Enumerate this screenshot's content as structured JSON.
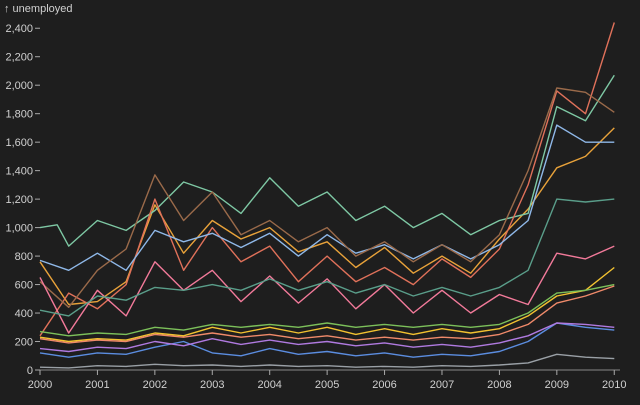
{
  "chart_data": {
    "type": "line",
    "title": "",
    "ylabel": "↑ unemployed",
    "xlabel": "",
    "x_range": [
      "2000-01",
      "2010-02"
    ],
    "ylim": [
      0,
      2500
    ],
    "x_ticks": [
      "2000",
      "2001",
      "2002",
      "2003",
      "2004",
      "2005",
      "2006",
      "2007",
      "2008",
      "2009",
      "2010"
    ],
    "y_ticks": [
      "0",
      "200",
      "400",
      "600",
      "800",
      "1,000",
      "1,200",
      "1,400",
      "1,600",
      "1,800",
      "2,000",
      "2,200",
      "2,400"
    ],
    "grid": false,
    "legend": "none",
    "series": [
      {
        "color": "#e8a23a",
        "values": [
          [
            2000.0,
            760
          ],
          [
            2000.5,
            460
          ],
          [
            2001.0,
            480
          ],
          [
            2001.5,
            620
          ],
          [
            2002.0,
            1160
          ],
          [
            2002.5,
            820
          ],
          [
            2003.0,
            1050
          ],
          [
            2003.5,
            920
          ],
          [
            2004.0,
            1000
          ],
          [
            2004.5,
            830
          ],
          [
            2005.0,
            900
          ],
          [
            2005.5,
            720
          ],
          [
            2006.0,
            860
          ],
          [
            2006.5,
            680
          ],
          [
            2007.0,
            800
          ],
          [
            2007.5,
            680
          ],
          [
            2008.0,
            920
          ],
          [
            2008.5,
            1130
          ],
          [
            2009.0,
            1420
          ],
          [
            2009.5,
            1500
          ],
          [
            2010.0,
            1700
          ]
        ]
      },
      {
        "color": "#7ec8a4",
        "values": [
          [
            2000.0,
            1000
          ],
          [
            2000.3,
            1020
          ],
          [
            2000.5,
            870
          ],
          [
            2001.0,
            1050
          ],
          [
            2001.5,
            980
          ],
          [
            2002.0,
            1120
          ],
          [
            2002.5,
            1320
          ],
          [
            2003.0,
            1250
          ],
          [
            2003.5,
            1100
          ],
          [
            2004.0,
            1350
          ],
          [
            2004.5,
            1150
          ],
          [
            2005.0,
            1250
          ],
          [
            2005.5,
            1050
          ],
          [
            2006.0,
            1150
          ],
          [
            2006.5,
            1000
          ],
          [
            2007.0,
            1100
          ],
          [
            2007.5,
            950
          ],
          [
            2008.0,
            1050
          ],
          [
            2008.5,
            1100
          ],
          [
            2009.0,
            1850
          ],
          [
            2009.5,
            1750
          ],
          [
            2010.0,
            2070
          ]
        ]
      },
      {
        "color": "#e0715a",
        "values": [
          [
            2000.0,
            240
          ],
          [
            2000.5,
            540
          ],
          [
            2001.0,
            430
          ],
          [
            2001.5,
            600
          ],
          [
            2002.0,
            1200
          ],
          [
            2002.5,
            700
          ],
          [
            2003.0,
            1000
          ],
          [
            2003.5,
            760
          ],
          [
            2004.0,
            870
          ],
          [
            2004.5,
            620
          ],
          [
            2005.0,
            800
          ],
          [
            2005.5,
            620
          ],
          [
            2006.0,
            720
          ],
          [
            2006.5,
            600
          ],
          [
            2007.0,
            780
          ],
          [
            2007.5,
            650
          ],
          [
            2008.0,
            850
          ],
          [
            2008.5,
            1300
          ],
          [
            2009.0,
            1960
          ],
          [
            2009.5,
            1800
          ],
          [
            2010.0,
            2440
          ]
        ]
      },
      {
        "color": "#8fb8e8",
        "values": [
          [
            2000.0,
            770
          ],
          [
            2000.5,
            700
          ],
          [
            2001.0,
            820
          ],
          [
            2001.5,
            700
          ],
          [
            2002.0,
            980
          ],
          [
            2002.5,
            900
          ],
          [
            2003.0,
            960
          ],
          [
            2003.5,
            860
          ],
          [
            2004.0,
            960
          ],
          [
            2004.5,
            800
          ],
          [
            2005.0,
            950
          ],
          [
            2005.5,
            820
          ],
          [
            2006.0,
            880
          ],
          [
            2006.5,
            780
          ],
          [
            2007.0,
            880
          ],
          [
            2007.5,
            780
          ],
          [
            2008.0,
            880
          ],
          [
            2008.5,
            1050
          ],
          [
            2009.0,
            1720
          ],
          [
            2009.5,
            1600
          ],
          [
            2010.0,
            1600
          ]
        ]
      },
      {
        "color": "#9a6a4a",
        "values": [
          [
            2000.0,
            620
          ],
          [
            2000.5,
            440
          ],
          [
            2001.0,
            700
          ],
          [
            2001.5,
            850
          ],
          [
            2002.0,
            1370
          ],
          [
            2002.5,
            1050
          ],
          [
            2003.0,
            1250
          ],
          [
            2003.5,
            950
          ],
          [
            2004.0,
            1050
          ],
          [
            2004.5,
            900
          ],
          [
            2005.0,
            1000
          ],
          [
            2005.5,
            800
          ],
          [
            2006.0,
            900
          ],
          [
            2006.5,
            760
          ],
          [
            2007.0,
            880
          ],
          [
            2007.5,
            760
          ],
          [
            2008.0,
            950
          ],
          [
            2008.5,
            1400
          ],
          [
            2009.0,
            1980
          ],
          [
            2009.5,
            1950
          ],
          [
            2010.0,
            1810
          ]
        ]
      },
      {
        "color": "#f27a9a",
        "values": [
          [
            2000.0,
            650
          ],
          [
            2000.5,
            260
          ],
          [
            2001.0,
            560
          ],
          [
            2001.5,
            380
          ],
          [
            2002.0,
            760
          ],
          [
            2002.5,
            560
          ],
          [
            2003.0,
            700
          ],
          [
            2003.5,
            480
          ],
          [
            2004.0,
            660
          ],
          [
            2004.5,
            470
          ],
          [
            2005.0,
            640
          ],
          [
            2005.5,
            430
          ],
          [
            2006.0,
            600
          ],
          [
            2006.5,
            400
          ],
          [
            2007.0,
            560
          ],
          [
            2007.5,
            400
          ],
          [
            2008.0,
            530
          ],
          [
            2008.5,
            460
          ],
          [
            2009.0,
            820
          ],
          [
            2009.5,
            780
          ],
          [
            2010.0,
            870
          ]
        ]
      },
      {
        "color": "#5a9e8a",
        "values": [
          [
            2000.0,
            420
          ],
          [
            2000.5,
            380
          ],
          [
            2001.0,
            520
          ],
          [
            2001.5,
            490
          ],
          [
            2002.0,
            580
          ],
          [
            2002.5,
            560
          ],
          [
            2003.0,
            600
          ],
          [
            2003.5,
            560
          ],
          [
            2004.0,
            640
          ],
          [
            2004.5,
            560
          ],
          [
            2005.0,
            620
          ],
          [
            2005.5,
            540
          ],
          [
            2006.0,
            600
          ],
          [
            2006.5,
            520
          ],
          [
            2007.0,
            580
          ],
          [
            2007.5,
            520
          ],
          [
            2008.0,
            580
          ],
          [
            2008.5,
            700
          ],
          [
            2009.0,
            1200
          ],
          [
            2009.5,
            1180
          ],
          [
            2010.0,
            1200
          ]
        ]
      },
      {
        "color": "#f2c230",
        "values": [
          [
            2000.0,
            230
          ],
          [
            2000.5,
            200
          ],
          [
            2001.0,
            220
          ],
          [
            2001.5,
            210
          ],
          [
            2002.0,
            260
          ],
          [
            2002.5,
            240
          ],
          [
            2003.0,
            300
          ],
          [
            2003.5,
            260
          ],
          [
            2004.0,
            300
          ],
          [
            2004.5,
            260
          ],
          [
            2005.0,
            300
          ],
          [
            2005.5,
            250
          ],
          [
            2006.0,
            290
          ],
          [
            2006.5,
            250
          ],
          [
            2007.0,
            290
          ],
          [
            2007.5,
            260
          ],
          [
            2008.0,
            290
          ],
          [
            2008.5,
            380
          ],
          [
            2009.0,
            520
          ],
          [
            2009.5,
            560
          ],
          [
            2010.0,
            720
          ]
        ]
      },
      {
        "color": "#7cc05a",
        "values": [
          [
            2000.0,
            270
          ],
          [
            2000.5,
            240
          ],
          [
            2001.0,
            260
          ],
          [
            2001.5,
            250
          ],
          [
            2002.0,
            300
          ],
          [
            2002.5,
            280
          ],
          [
            2003.0,
            320
          ],
          [
            2003.5,
            300
          ],
          [
            2004.0,
            320
          ],
          [
            2004.5,
            300
          ],
          [
            2005.0,
            330
          ],
          [
            2005.5,
            300
          ],
          [
            2006.0,
            320
          ],
          [
            2006.5,
            300
          ],
          [
            2007.0,
            320
          ],
          [
            2007.5,
            300
          ],
          [
            2008.0,
            320
          ],
          [
            2008.5,
            400
          ],
          [
            2009.0,
            540
          ],
          [
            2009.5,
            560
          ],
          [
            2010.0,
            600
          ]
        ]
      },
      {
        "color": "#f08a6a",
        "values": [
          [
            2000.0,
            220
          ],
          [
            2000.5,
            190
          ],
          [
            2001.0,
            210
          ],
          [
            2001.5,
            200
          ],
          [
            2002.0,
            250
          ],
          [
            2002.5,
            230
          ],
          [
            2003.0,
            260
          ],
          [
            2003.5,
            230
          ],
          [
            2004.0,
            250
          ],
          [
            2004.5,
            220
          ],
          [
            2005.0,
            240
          ],
          [
            2005.5,
            210
          ],
          [
            2006.0,
            230
          ],
          [
            2006.5,
            210
          ],
          [
            2007.0,
            230
          ],
          [
            2007.5,
            220
          ],
          [
            2008.0,
            250
          ],
          [
            2008.5,
            320
          ],
          [
            2009.0,
            470
          ],
          [
            2009.5,
            520
          ],
          [
            2010.0,
            590
          ]
        ]
      },
      {
        "color": "#5b8de0",
        "values": [
          [
            2000.0,
            120
          ],
          [
            2000.5,
            90
          ],
          [
            2001.0,
            120
          ],
          [
            2001.5,
            110
          ],
          [
            2002.0,
            160
          ],
          [
            2002.5,
            200
          ],
          [
            2003.0,
            120
          ],
          [
            2003.5,
            100
          ],
          [
            2004.0,
            150
          ],
          [
            2004.5,
            110
          ],
          [
            2005.0,
            130
          ],
          [
            2005.5,
            100
          ],
          [
            2006.0,
            120
          ],
          [
            2006.5,
            90
          ],
          [
            2007.0,
            110
          ],
          [
            2007.5,
            100
          ],
          [
            2008.0,
            130
          ],
          [
            2008.5,
            200
          ],
          [
            2009.0,
            330
          ],
          [
            2009.5,
            300
          ],
          [
            2010.0,
            280
          ]
        ]
      },
      {
        "color": "#b07ae0",
        "values": [
          [
            2000.0,
            150
          ],
          [
            2000.5,
            130
          ],
          [
            2001.0,
            160
          ],
          [
            2001.5,
            150
          ],
          [
            2002.0,
            200
          ],
          [
            2002.5,
            170
          ],
          [
            2003.0,
            220
          ],
          [
            2003.5,
            180
          ],
          [
            2004.0,
            210
          ],
          [
            2004.5,
            180
          ],
          [
            2005.0,
            200
          ],
          [
            2005.5,
            170
          ],
          [
            2006.0,
            190
          ],
          [
            2006.5,
            160
          ],
          [
            2007.0,
            180
          ],
          [
            2007.5,
            160
          ],
          [
            2008.0,
            190
          ],
          [
            2008.5,
            240
          ],
          [
            2009.0,
            330
          ],
          [
            2009.5,
            320
          ],
          [
            2010.0,
            300
          ]
        ]
      },
      {
        "color": "#9aa0a6",
        "values": [
          [
            2000.0,
            20
          ],
          [
            2000.5,
            15
          ],
          [
            2001.0,
            30
          ],
          [
            2001.5,
            25
          ],
          [
            2002.0,
            40
          ],
          [
            2002.5,
            30
          ],
          [
            2003.0,
            35
          ],
          [
            2003.5,
            25
          ],
          [
            2004.0,
            35
          ],
          [
            2004.5,
            25
          ],
          [
            2005.0,
            30
          ],
          [
            2005.5,
            20
          ],
          [
            2006.0,
            25
          ],
          [
            2006.5,
            20
          ],
          [
            2007.0,
            30
          ],
          [
            2007.5,
            25
          ],
          [
            2008.0,
            35
          ],
          [
            2008.5,
            50
          ],
          [
            2009.0,
            110
          ],
          [
            2009.5,
            90
          ],
          [
            2010.0,
            80
          ]
        ]
      }
    ]
  }
}
